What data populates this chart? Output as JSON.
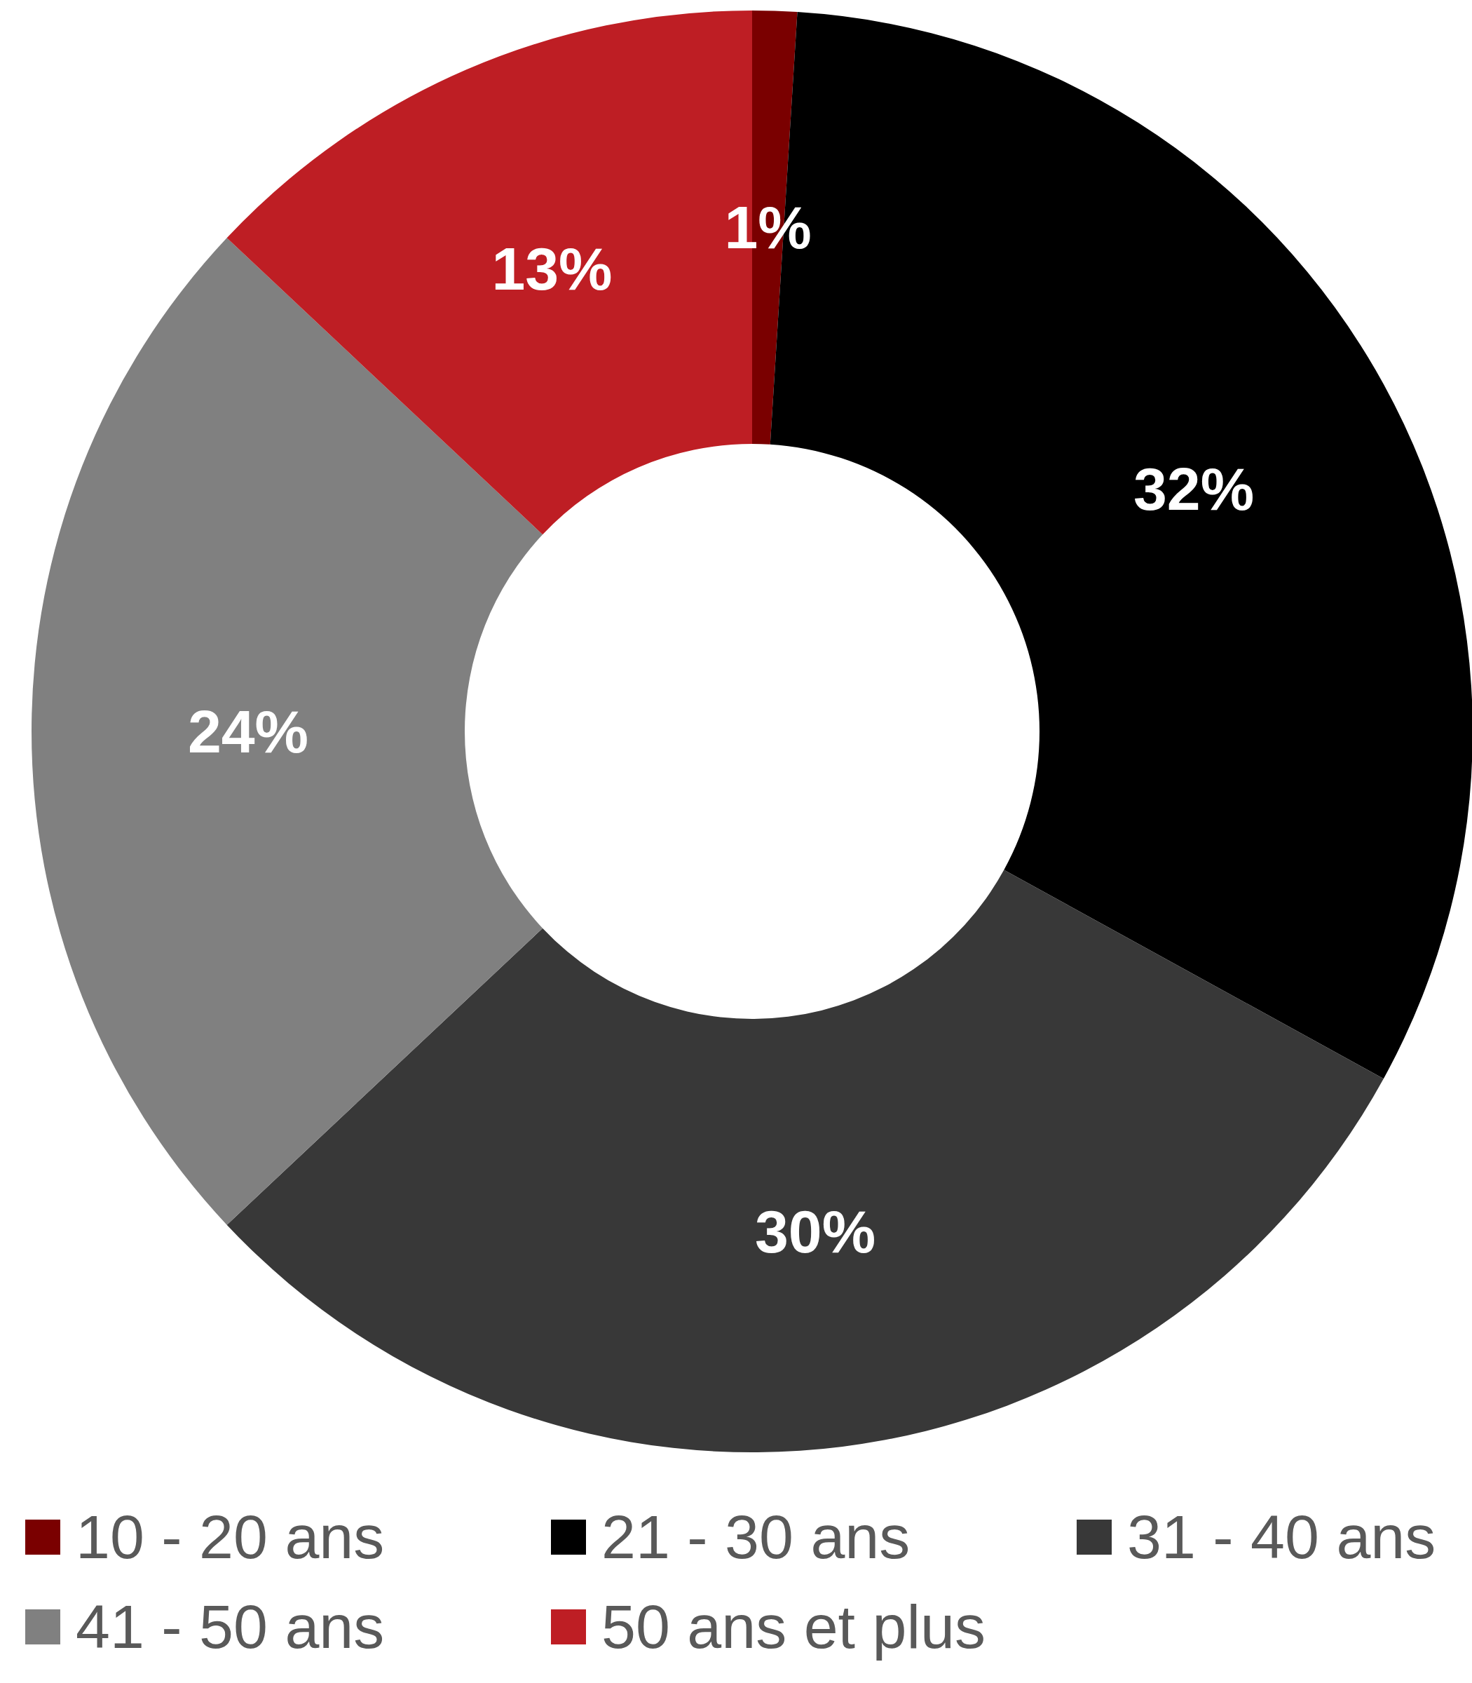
{
  "chart_data": {
    "type": "donut",
    "categories": [
      "10 - 20 ans",
      "21 - 30 ans",
      "31 - 40 ans",
      "41 - 50 ans",
      "50 ans et plus"
    ],
    "values": [
      1,
      32,
      30,
      24,
      13
    ],
    "colors": [
      "#7a0000",
      "#000000",
      "#383838",
      "#808080",
      "#be1e24"
    ],
    "value_labels": [
      "1%",
      "32%",
      "30%",
      "24%",
      "13%"
    ],
    "legend": "bottom"
  }
}
